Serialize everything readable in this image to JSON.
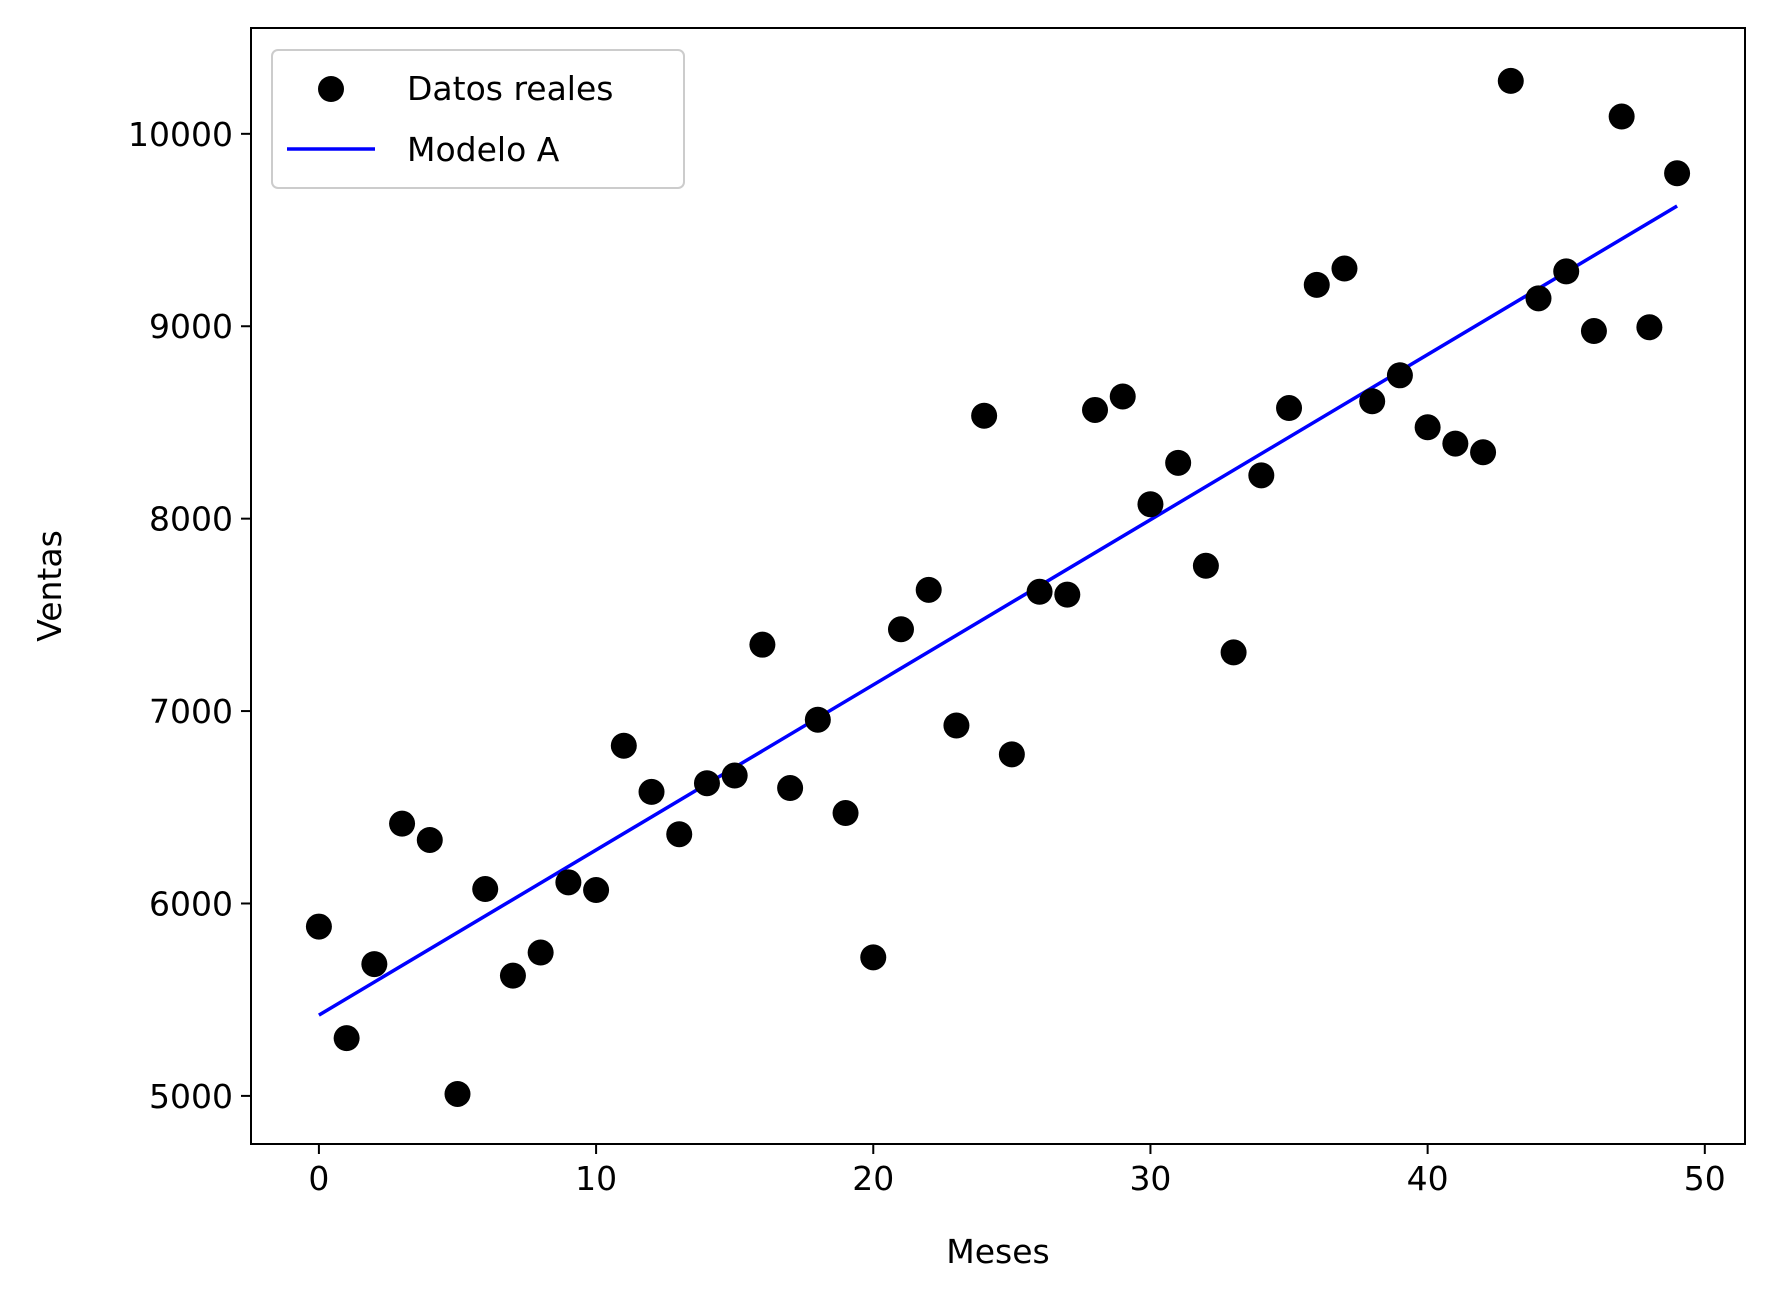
{
  "chart_data": {
    "type": "scatter",
    "title": "",
    "xlabel": "Meses",
    "ylabel": "Ventas",
    "xlim": [
      -2.45,
      51.45
    ],
    "ylim": [
      4750,
      10550
    ],
    "xticks": [
      0,
      10,
      20,
      30,
      40,
      50
    ],
    "yticks": [
      5000,
      6000,
      7000,
      8000,
      9000,
      10000
    ],
    "grid": false,
    "legend": {
      "placement": "upper-left"
    },
    "series": [
      {
        "name": "Datos reales",
        "kind": "scatter",
        "color": "#000000",
        "x": [
          0,
          1,
          2,
          3,
          4,
          5,
          6,
          7,
          8,
          9,
          10,
          11,
          12,
          13,
          14,
          15,
          16,
          17,
          18,
          19,
          20,
          21,
          22,
          23,
          24,
          25,
          26,
          27,
          28,
          29,
          30,
          31,
          32,
          33,
          34,
          35,
          36,
          37,
          38,
          39,
          40,
          41,
          42,
          43,
          44,
          45,
          46,
          47,
          48,
          49
        ],
        "y": [
          5880,
          5300,
          5685,
          6415,
          6330,
          5010,
          6075,
          5625,
          5745,
          6110,
          6070,
          6820,
          6580,
          6360,
          6625,
          6665,
          7345,
          6600,
          6955,
          6470,
          5720,
          7425,
          7630,
          6925,
          8535,
          6775,
          7620,
          7605,
          8565,
          8635,
          8075,
          8290,
          7755,
          7305,
          8225,
          8575,
          9215,
          9300,
          8610,
          8745,
          8475,
          8390,
          8345,
          10275,
          9145,
          9285,
          8975,
          10090,
          8995,
          9795
        ]
      },
      {
        "name": "Modelo A",
        "kind": "line",
        "color": "#0000ff",
        "x": [
          0,
          49
        ],
        "y": [
          5420,
          9625
        ]
      }
    ]
  }
}
